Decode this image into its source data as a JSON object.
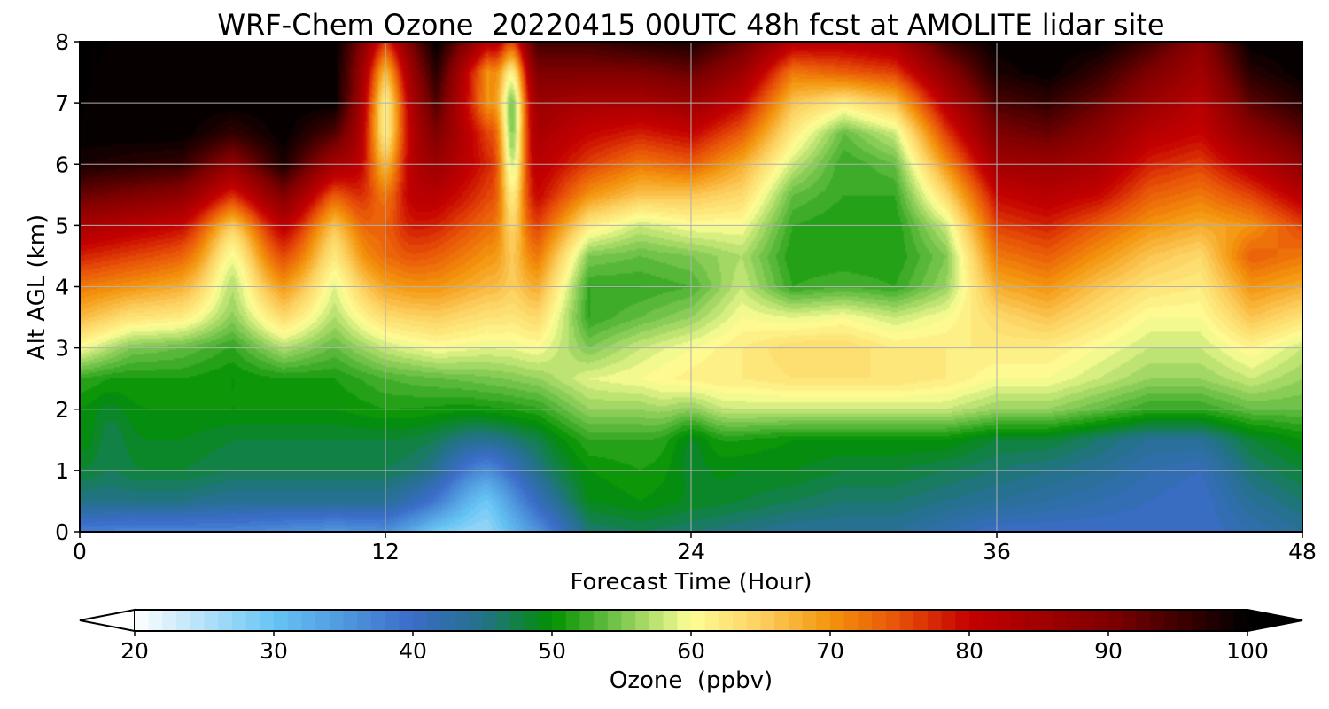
{
  "chart_data": {
    "type": "heatmap",
    "title": "WRF-Chem Ozone  20220415 00UTC 48h fcst at AMOLITE lidar site",
    "xlabel": "Forecast Time (Hour)",
    "ylabel": "Alt AGL (km)",
    "xlim": [
      0,
      48
    ],
    "ylim": [
      0,
      8
    ],
    "xticks": [
      0,
      12,
      24,
      36,
      48
    ],
    "yticks": [
      0,
      1,
      2,
      3,
      4,
      5,
      6,
      7,
      8
    ],
    "grid": true,
    "colorbar": {
      "label": "Ozone  (ppbv)",
      "min": 20,
      "max": 100,
      "step": 1,
      "ticks": [
        20,
        30,
        40,
        50,
        60,
        70,
        80,
        90,
        100
      ],
      "extend": "both",
      "under_color": "#ffffff",
      "over_color": "#000000",
      "color_stops": [
        [
          20,
          "#ffffff"
        ],
        [
          30,
          "#66c4f4"
        ],
        [
          40,
          "#3a6cc8"
        ],
        [
          45,
          "#24728a"
        ],
        [
          50,
          "#009000"
        ],
        [
          55,
          "#7cc850"
        ],
        [
          60,
          "#fefe96"
        ],
        [
          65,
          "#fcd060"
        ],
        [
          70,
          "#f4940c"
        ],
        [
          75,
          "#e85008"
        ],
        [
          80,
          "#c40000"
        ],
        [
          90,
          "#800000"
        ],
        [
          100,
          "#000000"
        ]
      ]
    },
    "x": [
      0,
      2,
      4,
      6,
      8,
      10,
      12,
      14,
      16,
      18,
      20,
      22,
      24,
      26,
      28,
      30,
      32,
      34,
      36,
      38,
      40,
      42,
      44,
      46,
      48
    ],
    "altitudes_km": [
      0,
      0.5,
      1,
      1.5,
      2,
      2.5,
      3,
      3.5,
      4,
      4.5,
      5,
      5.5,
      6,
      6.5,
      7,
      7.5,
      8
    ],
    "ozone_ppbv_by_time": [
      [
        38,
        45,
        48,
        50,
        50,
        52,
        60,
        67,
        72,
        78,
        84,
        92,
        98,
        100,
        100,
        100,
        100
      ],
      [
        37,
        45,
        48,
        49,
        50,
        51,
        55,
        63,
        70,
        76,
        82,
        90,
        97,
        100,
        100,
        100,
        100
      ],
      [
        37,
        45,
        48,
        49,
        50,
        51,
        54,
        62,
        68,
        74,
        80,
        88,
        96,
        100,
        100,
        100,
        100
      ],
      [
        37,
        44,
        47,
        48,
        50,
        50,
        52,
        57,
        62,
        68,
        72,
        80,
        88,
        96,
        100,
        100,
        100
      ],
      [
        36,
        44,
        47,
        48,
        50,
        51,
        57,
        64,
        70,
        76,
        82,
        90,
        98,
        100,
        100,
        100,
        100
      ],
      [
        35,
        44,
        47,
        48,
        50,
        51,
        54,
        58,
        62,
        68,
        72,
        78,
        86,
        94,
        100,
        100,
        100
      ],
      [
        36,
        44,
        47,
        48,
        51,
        53,
        58,
        64,
        70,
        76,
        80,
        82,
        80,
        76,
        74,
        76,
        82
      ],
      [
        30,
        40,
        46,
        48,
        51,
        54,
        60,
        65,
        70,
        74,
        78,
        82,
        86,
        90,
        94,
        97,
        100
      ],
      [
        30,
        35,
        42,
        48,
        52,
        55,
        59,
        63,
        67,
        70,
        73,
        76,
        78,
        76,
        70,
        70,
        82
      ],
      [
        36,
        42,
        46,
        48,
        52,
        56,
        60,
        64,
        68,
        72,
        76,
        80,
        82,
        84,
        86,
        90,
        95
      ],
      [
        46,
        49,
        50,
        52,
        56,
        59,
        55,
        52,
        52,
        55,
        62,
        70,
        76,
        80,
        84,
        90,
        95
      ],
      [
        47,
        50,
        51,
        52,
        56,
        60,
        58,
        54,
        52,
        54,
        58,
        66,
        72,
        78,
        84,
        90,
        97
      ],
      [
        46,
        49,
        50,
        52,
        58,
        62,
        60,
        56,
        53,
        55,
        60,
        66,
        74,
        80,
        86,
        92,
        98
      ],
      [
        45,
        48,
        49,
        51,
        58,
        62,
        62,
        60,
        58,
        57,
        60,
        64,
        68,
        74,
        80,
        86,
        92
      ],
      [
        44,
        47,
        49,
        50,
        58,
        63,
        64,
        59,
        52,
        51,
        52,
        54,
        58,
        62,
        66,
        72,
        82
      ],
      [
        44,
        46,
        48,
        50,
        58,
        63,
        64,
        60,
        53,
        51,
        51,
        52,
        52,
        54,
        62,
        74,
        82
      ],
      [
        44,
        46,
        48,
        50,
        58,
        63,
        62,
        58,
        52,
        51,
        51,
        52,
        54,
        58,
        66,
        76,
        84
      ],
      [
        42,
        45,
        47,
        50,
        58,
        62,
        62,
        60,
        56,
        55,
        58,
        64,
        70,
        76,
        82,
        88,
        95
      ],
      [
        40,
        44,
        46,
        48,
        56,
        60,
        62,
        64,
        68,
        72,
        76,
        80,
        85,
        90,
        94,
        98,
        100
      ],
      [
        40,
        43,
        45,
        48,
        56,
        60,
        62,
        66,
        70,
        74,
        78,
        82,
        86,
        92,
        96,
        100,
        100
      ],
      [
        40,
        42,
        44,
        46,
        54,
        58,
        60,
        63,
        66,
        70,
        74,
        80,
        84,
        88,
        92,
        96,
        100
      ],
      [
        40,
        41,
        42,
        44,
        52,
        56,
        58,
        60,
        63,
        66,
        70,
        74,
        78,
        82,
        86,
        90,
        95
      ],
      [
        40,
        40,
        41,
        44,
        52,
        56,
        58,
        60,
        62,
        64,
        68,
        72,
        76,
        80,
        82,
        85,
        88
      ],
      [
        42,
        44,
        46,
        48,
        54,
        58,
        61,
        66,
        70,
        74,
        70,
        76,
        82,
        88,
        93,
        97,
        100
      ],
      [
        44,
        46,
        48,
        50,
        54,
        56,
        58,
        63,
        68,
        72,
        76,
        82,
        88,
        93,
        97,
        100,
        100
      ]
    ],
    "detail_features": [
      {
        "t": 15.8,
        "z": 0.8,
        "sigma_t": 1.2,
        "sigma_z": 0.7,
        "delta_ppbv": -6
      },
      {
        "t": 12.0,
        "z": 6.5,
        "sigma_t": 0.5,
        "sigma_z": 1.1,
        "delta_ppbv": -14
      },
      {
        "t": 17.0,
        "z": 6.6,
        "sigma_t": 0.35,
        "sigma_z": 1.2,
        "delta_ppbv": -24
      },
      {
        "t": 6.0,
        "z": 4.6,
        "sigma_t": 0.8,
        "sigma_z": 0.6,
        "delta_ppbv": -8
      },
      {
        "t": 10.0,
        "z": 4.8,
        "sigma_t": 0.8,
        "sigma_z": 0.7,
        "delta_ppbv": -6
      },
      {
        "t": 24.0,
        "z": 1.6,
        "sigma_t": 0.6,
        "sigma_z": 0.5,
        "delta_ppbv": -3
      },
      {
        "t": 1.2,
        "z": 1.6,
        "sigma_t": 0.5,
        "sigma_z": 0.5,
        "delta_ppbv": -2
      }
    ]
  }
}
